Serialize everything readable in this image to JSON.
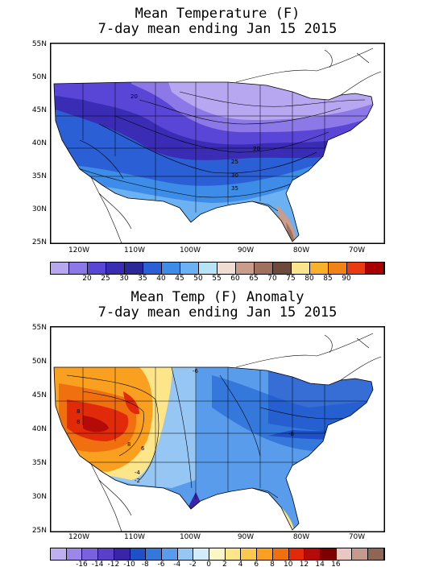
{
  "top": {
    "title_line1": "Mean Temperature (F)",
    "title_line2": "7-day mean ending Jan 15 2015",
    "lat_labels": [
      "55N",
      "50N",
      "45N",
      "40N",
      "35N",
      "30N",
      "25N"
    ],
    "lon_labels": [
      "120W",
      "110W",
      "100W",
      "90W",
      "80W",
      "70W"
    ],
    "contour_labels": [
      "20",
      "20",
      "25",
      "30",
      "35"
    ],
    "colorbar": {
      "colors": [
        "#b7a6f0",
        "#8c78e6",
        "#5a46d6",
        "#3a2cb4",
        "#2a2796",
        "#2a5fd6",
        "#3c8ce8",
        "#6cb1f2",
        "#b6e4f6",
        "#f0dcd0",
        "#c99c8c",
        "#a0725e",
        "#6e4a3c",
        "#fbe48e",
        "#f9b02a",
        "#f08216",
        "#ea3a10",
        "#a80000"
      ],
      "labels": [
        "20",
        "25",
        "30",
        "35",
        "40",
        "45",
        "50",
        "55",
        "60",
        "65",
        "70",
        "75",
        "80",
        "85",
        "90"
      ]
    }
  },
  "bottom": {
    "title_line1": "Mean Temp (F) Anomaly",
    "title_line2": "7-day mean ending Jan 15 2015",
    "lat_labels": [
      "55N",
      "50N",
      "45N",
      "40N",
      "35N",
      "30N",
      "25N"
    ],
    "lon_labels": [
      "120W",
      "110W",
      "100W",
      "90W",
      "80W",
      "70W"
    ],
    "contour_labels": [
      "8",
      "8",
      "8",
      "6",
      "-4",
      "-6",
      "-8",
      "-2"
    ],
    "colorbar": {
      "colors": [
        "#c0b0f2",
        "#9c86ea",
        "#7a62de",
        "#5840c8",
        "#3a24a8",
        "#1e50c8",
        "#3478dc",
        "#5a9cec",
        "#96c6f4",
        "#d4ecf8",
        "#fdf6c8",
        "#fde68a",
        "#fbc850",
        "#f9a020",
        "#f07010",
        "#e02a0a",
        "#b40a0a",
        "#7e0000",
        "#e8c8c0",
        "#c49a8c",
        "#8e6656"
      ],
      "labels": [
        "-16",
        "-14",
        "-12",
        "-10",
        "-8",
        "-6",
        "-4",
        "-2",
        "0",
        "2",
        "4",
        "6",
        "8",
        "10",
        "12",
        "14",
        "16"
      ]
    }
  }
}
